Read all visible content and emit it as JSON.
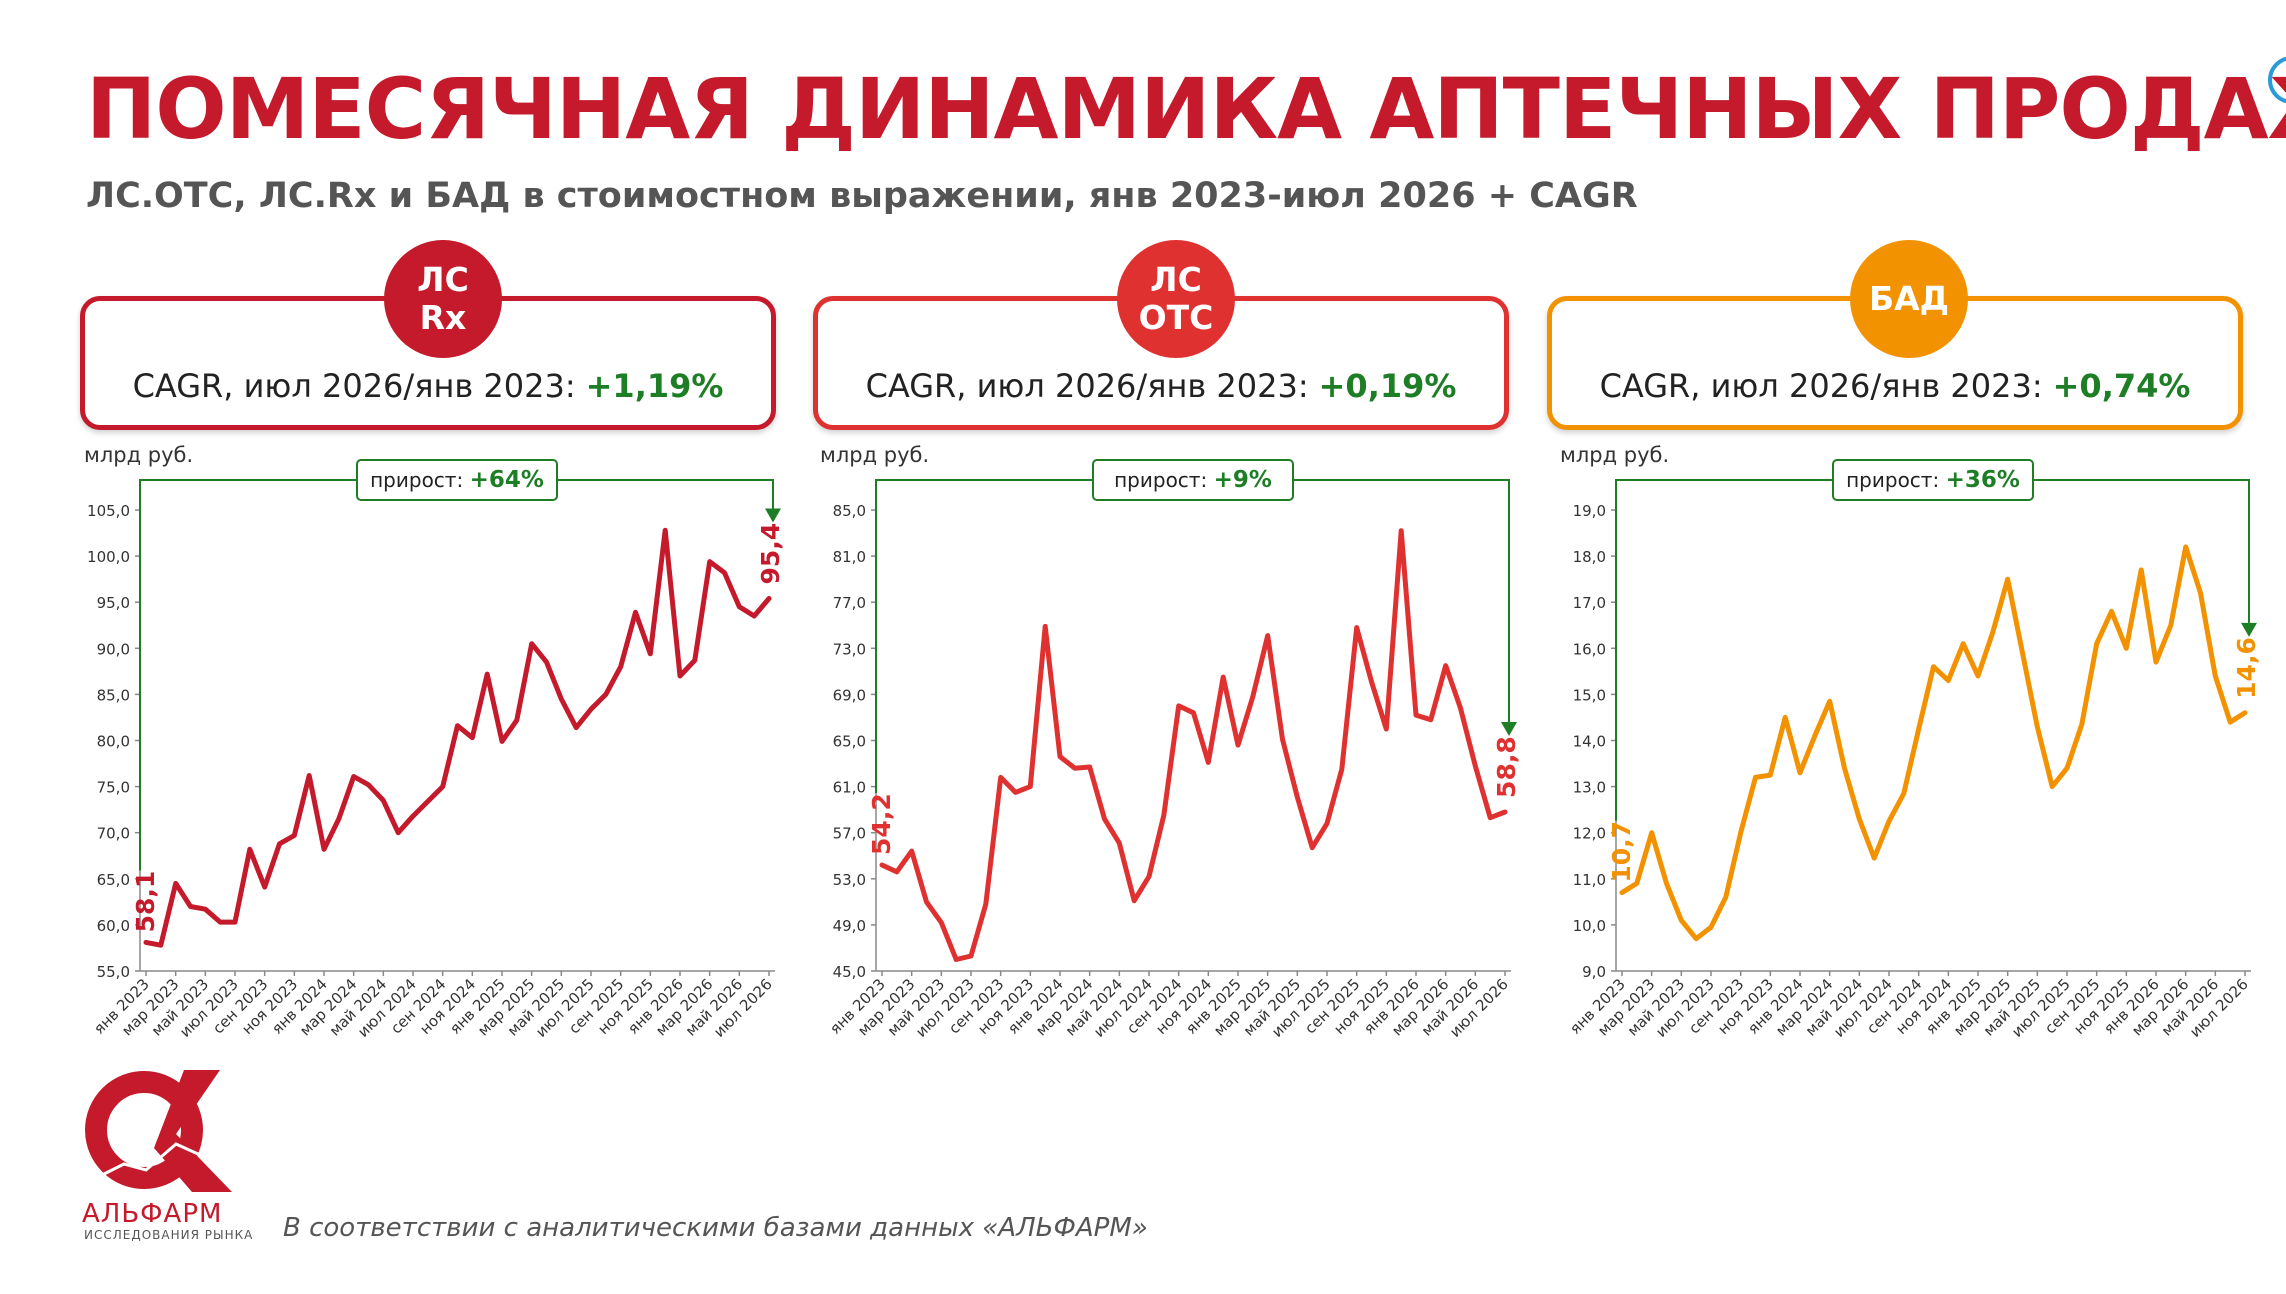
{
  "header": {
    "title": "ПОМЕСЯЧНАЯ ДИНАМИКА АПТЕЧНЫХ ПРОДАЖ",
    "subtitle": "ЛС.ОТС, ЛС.Rx и БАД в стоимостном выражении, янв 2023-июл 2026 + CAGR"
  },
  "panels": [
    {
      "badge": "ЛС\nRx",
      "color": "#c41a2b",
      "cagr_label": "CAGR, июл 2026/янв 2023:",
      "cagr_value": "+1,19%"
    },
    {
      "badge": "ЛС\nОТС",
      "color": "#e03131",
      "cagr_label": "CAGR, июл 2026/янв 2023:",
      "cagr_value": "+0,19%"
    },
    {
      "badge": "БАД",
      "color": "#f39200",
      "cagr_label": "CAGR, июл 2026/янв 2023:",
      "cagr_value": "+0,74%"
    }
  ],
  "chart_data": [
    {
      "type": "line",
      "series_name": "ЛС Rx",
      "ylabel": "млрд руб.",
      "ylim": [
        55,
        105
      ],
      "yticks": [
        "55,0",
        "60,0",
        "65,0",
        "70,0",
        "75,0",
        "80,0",
        "85,0",
        "90,0",
        "95,0",
        "100,0",
        "105,0"
      ],
      "xtick_labels": [
        "янв 2023",
        "мар 2023",
        "май 2023",
        "июл 2023",
        "сен 2023",
        "ноя 2023",
        "янв 2024",
        "мар 2024",
        "май 2024",
        "июл 2024",
        "сен 2024",
        "ноя 2024",
        "янв 2025",
        "мар 2025",
        "май 2025",
        "июл 2025",
        "сен 2025",
        "ноя 2025",
        "янв 2026",
        "мар 2026",
        "май 2026",
        "июл 2026"
      ],
      "color": "#c41a2b",
      "values": [
        58.1,
        57.8,
        64.5,
        62.0,
        61.7,
        60.3,
        60.3,
        68.2,
        64.1,
        68.8,
        69.7,
        76.2,
        68.2,
        71.5,
        76.1,
        75.2,
        73.5,
        70.0,
        71.8,
        73.4,
        75.0,
        81.6,
        80.3,
        87.2,
        79.9,
        82.2,
        90.5,
        88.5,
        84.5,
        81.4,
        83.4,
        85.0,
        88.0,
        93.9,
        89.4,
        102.8,
        87.0,
        88.7,
        99.4,
        98.2,
        94.5,
        93.5,
        95.4
      ],
      "start_label": "58,1",
      "end_label": "95,4",
      "growth_label": "прирост:",
      "growth_value": "+64%"
    },
    {
      "type": "line",
      "series_name": "ЛС ОТС",
      "ylabel": "млрд руб.",
      "ylim": [
        45,
        85
      ],
      "yticks": [
        "45,0",
        "49,0",
        "53,0",
        "57,0",
        "61,0",
        "65,0",
        "69,0",
        "73,0",
        "77,0",
        "81,0",
        "85,0"
      ],
      "xtick_labels": [
        "янв 2023",
        "мар 2023",
        "май 2023",
        "июл 2023",
        "сен 2023",
        "ноя 2023",
        "янв 2024",
        "мар 2024",
        "май 2024",
        "июл 2024",
        "сен 2024",
        "ноя 2024",
        "янв 2025",
        "мар 2025",
        "май 2025",
        "июл 2025",
        "сен 2025",
        "ноя 2025",
        "янв 2026",
        "мар 2026",
        "май 2026",
        "июл 2026"
      ],
      "color": "#e03131",
      "values": [
        54.2,
        53.6,
        55.4,
        51.0,
        49.2,
        46.0,
        46.3,
        50.8,
        61.8,
        60.5,
        61.0,
        74.9,
        63.6,
        62.6,
        62.7,
        58.2,
        56.1,
        51.1,
        53.2,
        58.5,
        68.0,
        67.4,
        63.1,
        70.5,
        64.6,
        68.8,
        74.1,
        65.1,
        60.1,
        55.7,
        57.8,
        62.5,
        74.8,
        70.1,
        66.0,
        83.2,
        67.2,
        66.8,
        71.5,
        67.8,
        62.8,
        58.3,
        58.8
      ],
      "start_label": "54,2",
      "end_label": "58,8",
      "growth_label": "прирост:",
      "growth_value": "+9%"
    },
    {
      "type": "line",
      "series_name": "БАД",
      "ylabel": "млрд руб.",
      "ylim": [
        9,
        19
      ],
      "yticks": [
        "9,0",
        "10,0",
        "11,0",
        "12,0",
        "13,0",
        "14,0",
        "15,0",
        "16,0",
        "17,0",
        "18,0",
        "19,0"
      ],
      "xtick_labels": [
        "янв 2023",
        "мар 2023",
        "май 2023",
        "июл 2023",
        "сен 2023",
        "ноя 2023",
        "янв 2024",
        "мар 2024",
        "май 2024",
        "июл 2024",
        "сен 2024",
        "ноя 2024",
        "янв 2025",
        "мар 2025",
        "май 2025",
        "июл 2025",
        "сен 2025",
        "ноя 2025",
        "янв 2026",
        "мар 2026",
        "май 2026",
        "июл 2026"
      ],
      "color": "#f39200",
      "values": [
        10.7,
        10.9,
        12.0,
        10.9,
        10.1,
        9.7,
        9.95,
        10.6,
        12.0,
        13.2,
        13.25,
        14.5,
        13.3,
        14.1,
        14.85,
        13.4,
        12.3,
        11.45,
        12.25,
        12.85,
        14.25,
        15.6,
        15.3,
        16.1,
        15.4,
        16.35,
        17.5,
        15.9,
        14.3,
        13.0,
        13.4,
        14.35,
        16.1,
        16.8,
        16.0,
        17.7,
        15.7,
        16.5,
        18.2,
        17.2,
        15.4,
        14.4,
        14.6
      ],
      "start_label": "10,7",
      "end_label": "14,6",
      "growth_label": "прирост:",
      "growth_value": "+36%"
    }
  ],
  "logo": {
    "name": "АЛЬФАРМ",
    "sub": "ИССЛЕДОВАНИЯ РЫНКА"
  },
  "footnote": "В соответствии с аналитическими базами данных «АЛЬФАРМ»"
}
